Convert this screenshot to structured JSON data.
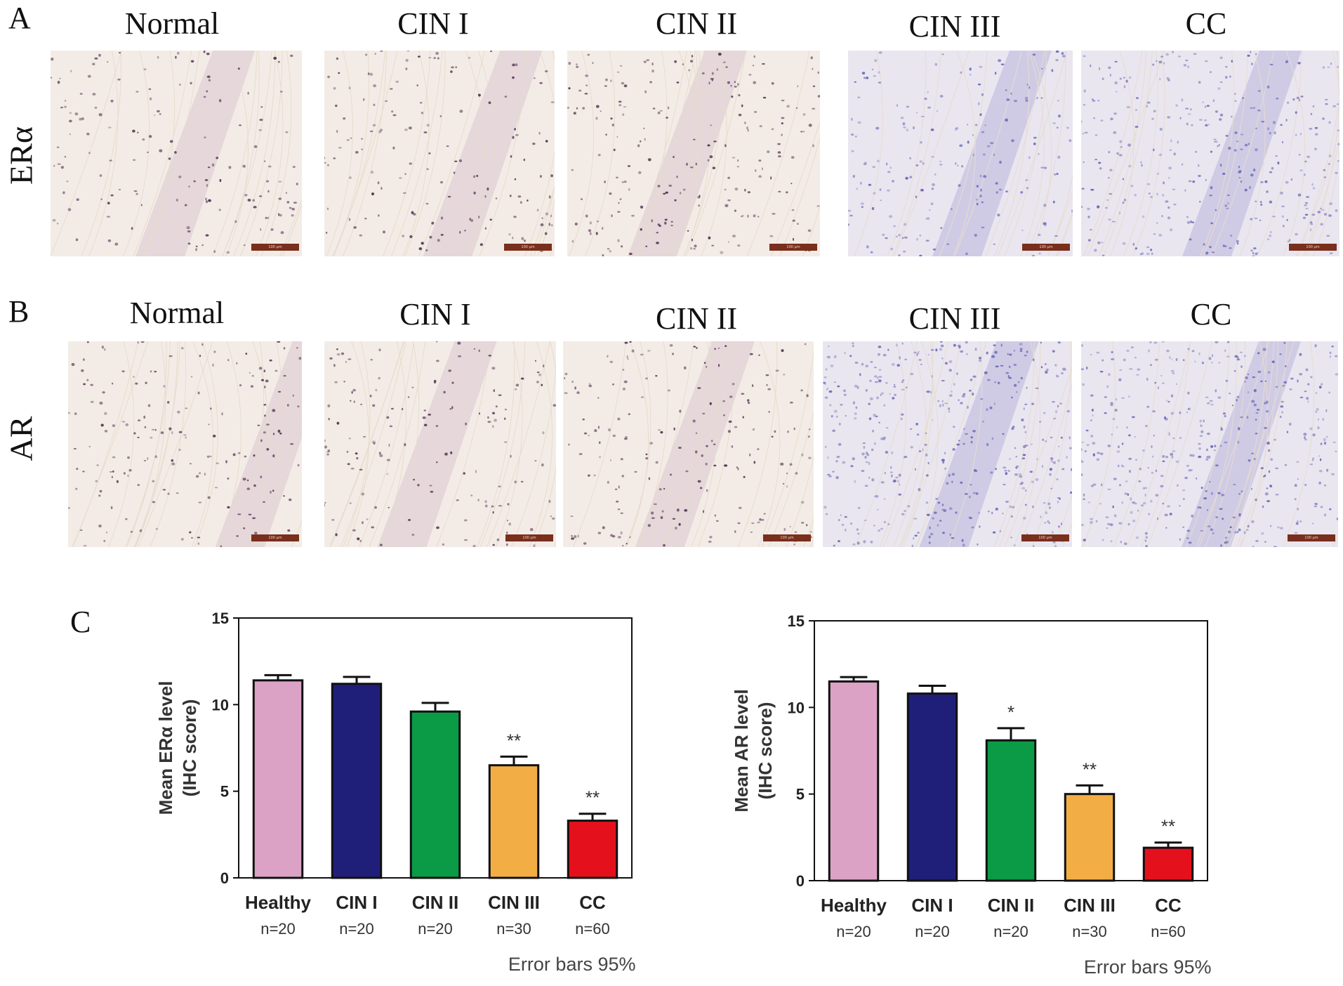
{
  "panels": {
    "a": {
      "letter": "A",
      "row_label": "ERα"
    },
    "b": {
      "letter": "B",
      "row_label": "AR"
    },
    "c": {
      "letter": "C"
    }
  },
  "columns": [
    "Normal",
    "CIN I",
    "CIN II",
    "CIN III",
    "CC"
  ],
  "scale_bar_label": "100 μm",
  "tile_colors": {
    "background": "#f3ece6",
    "nuclei_dark": "#5a3a5a",
    "nuclei_blue": "#6f6fb8",
    "stroma": "#e7dccd"
  },
  "chart_data": [
    {
      "type": "bar",
      "categories": [
        "Healthy",
        "CIN I",
        "CIN II",
        "CIN III",
        "CC"
      ],
      "category_n": [
        "n=20",
        "n=20",
        "n=20",
        "n=30",
        "n=60"
      ],
      "values": [
        11.4,
        11.2,
        9.6,
        6.5,
        3.3
      ],
      "errors": [
        0.3,
        0.4,
        0.5,
        0.5,
        0.4
      ],
      "significance": [
        "",
        "",
        "",
        "**",
        "**"
      ],
      "colors": [
        "#dca2c6",
        "#1f1f7a",
        "#0b9a45",
        "#f2ae45",
        "#e4111c"
      ],
      "ylabel": "Mean ERα  level\n(IHC score)",
      "ylim": [
        0,
        15
      ],
      "yticks": [
        0,
        5,
        10,
        15
      ],
      "caption": "Error  bars 95% CI"
    },
    {
      "type": "bar",
      "categories": [
        "Healthy",
        "CIN I",
        "CIN II",
        "CIN III",
        "CC"
      ],
      "category_n": [
        "n=20",
        "n=20",
        "n=20",
        "n=30",
        "n=60"
      ],
      "values": [
        11.5,
        10.8,
        8.1,
        5.0,
        1.9
      ],
      "errors": [
        0.25,
        0.45,
        0.7,
        0.5,
        0.3
      ],
      "significance": [
        "",
        "",
        "*",
        "**",
        "**"
      ],
      "colors": [
        "#dca2c6",
        "#1f1f7a",
        "#0b9a45",
        "#f2ae45",
        "#e4111c"
      ],
      "ylabel": "Mean AR level\n(IHC score)",
      "ylim": [
        0,
        15
      ],
      "yticks": [
        0,
        5,
        10,
        15
      ],
      "caption": "Error  bars 95% CI"
    }
  ]
}
